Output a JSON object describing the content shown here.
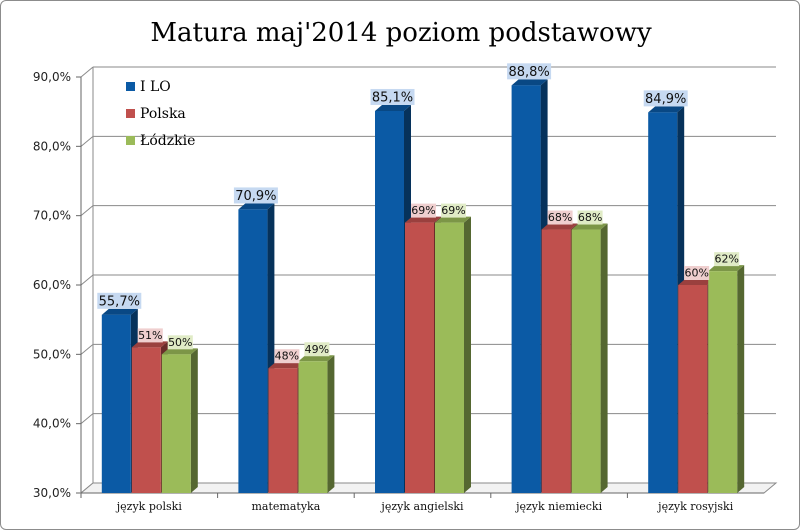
{
  "chart_data": {
    "type": "bar",
    "title": "Matura maj'2014 poziom podstawowy",
    "xlabel": "",
    "ylabel": "",
    "ylim": [
      30,
      90
    ],
    "yticks": [
      "30,0%",
      "40,0%",
      "50,0%",
      "60,0%",
      "70,0%",
      "80,0%",
      "90,0%"
    ],
    "ytick_values": [
      30,
      40,
      50,
      60,
      70,
      80,
      90
    ],
    "grid": true,
    "legend": "top-left",
    "categories": [
      "język polski",
      "matematyka",
      "język angielski",
      "język niemiecki",
      "język rosyjski"
    ],
    "series": [
      {
        "name": "I LO",
        "color": "#0b5aa5",
        "values": [
          55.7,
          70.9,
          85.1,
          88.8,
          84.9
        ],
        "labels": [
          "55,7%",
          "70,9%",
          "85,1%",
          "88,8%",
          "84,9%"
        ],
        "label_bg": "#c6d9f1"
      },
      {
        "name": "Polska",
        "color": "#c0504d",
        "values": [
          51,
          48,
          69,
          68,
          60
        ],
        "labels": [
          "51%",
          "48%",
          "69%",
          "68%",
          "60%"
        ],
        "label_bg": "#efcfcf"
      },
      {
        "name": "Łódzkie",
        "color": "#9bbb59",
        "values": [
          50,
          49,
          69,
          68,
          62
        ],
        "labels": [
          "50%",
          "49%",
          "69%",
          "68%",
          "62%"
        ],
        "label_bg": "#e0ebc6"
      }
    ]
  }
}
